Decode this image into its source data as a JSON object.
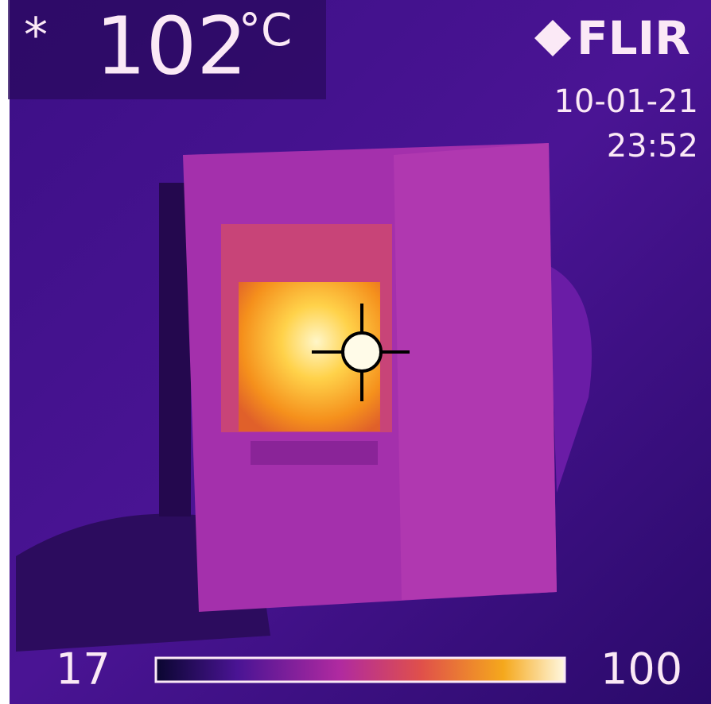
{
  "spot": {
    "marker": "*",
    "value": 102,
    "unit": "°C"
  },
  "brand": "FLIR",
  "date": "10-01-21",
  "time": "23:52",
  "scale": {
    "min": 17,
    "max": 100
  }
}
